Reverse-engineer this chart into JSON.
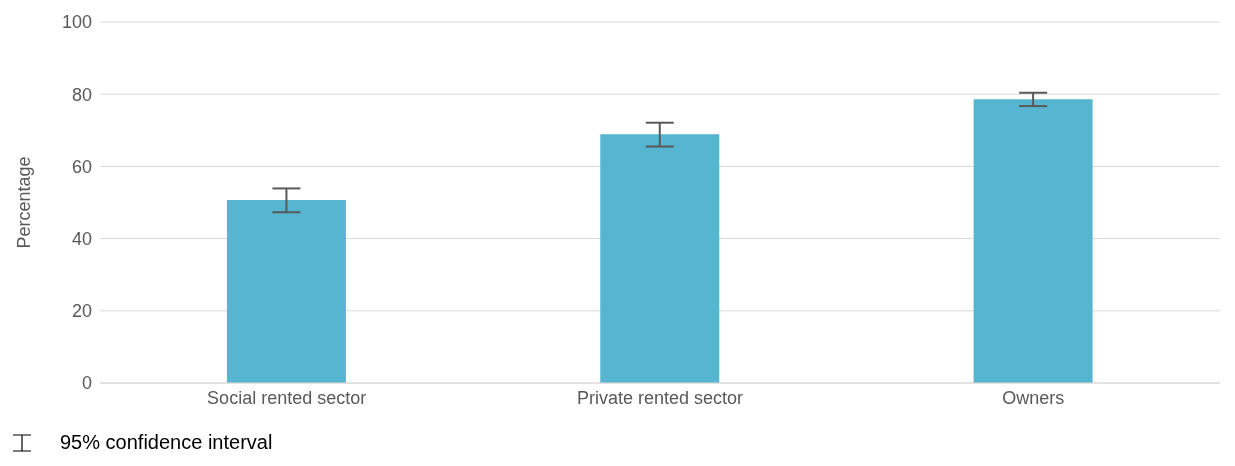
{
  "chart_data": {
    "type": "bar",
    "ylabel": "Percentage",
    "categories": [
      "Social rented sector",
      "Private rented sector",
      "Owners"
    ],
    "values": [
      50.7,
      68.9,
      78.6
    ],
    "errors": [
      [
        47.3,
        53.9
      ],
      [
        65.5,
        72.1
      ],
      [
        76.7,
        80.4
      ]
    ],
    "color": "#56b6d2",
    "ylim": [
      0,
      100
    ],
    "yticks": [
      0,
      20,
      40,
      60,
      80,
      100
    ],
    "grid": "y",
    "annotations": [
      "95% confidence interval"
    ]
  }
}
